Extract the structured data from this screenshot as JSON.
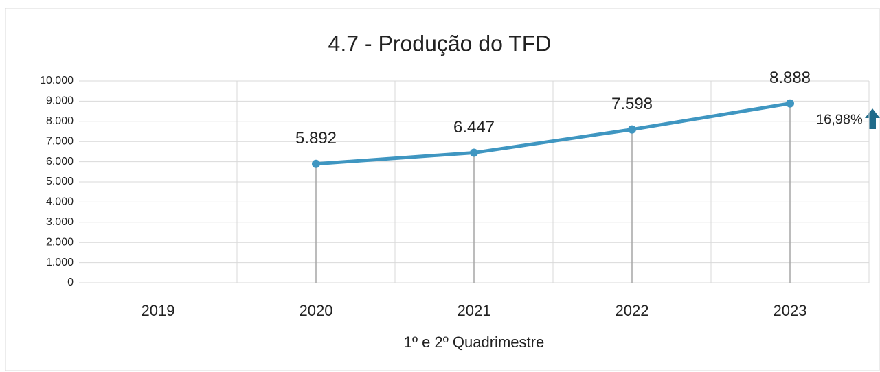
{
  "chart_data": {
    "type": "line",
    "title": "4.7 - Produção do TFD",
    "x_label": "1º e 2º Quadrimestre",
    "categories": [
      "2019",
      "2020",
      "2021",
      "2022",
      "2023"
    ],
    "values": [
      null,
      5892,
      6447,
      7598,
      8888
    ],
    "value_labels": [
      null,
      "5.892",
      "6.447",
      "7.598",
      "8.888"
    ],
    "color": "#3f96c1",
    "ylim": [
      0,
      10000
    ],
    "yticks": [
      0,
      {
        "value": 1000,
        "label": "1.000"
      },
      {
        "value": 2000,
        "label": "2.000"
      },
      {
        "value": 3000,
        "label": "3.000"
      },
      {
        "value": 4000,
        "label": "4.000"
      },
      {
        "value": 5000,
        "label": "5.000"
      },
      {
        "value": 6000,
        "label": "6.000"
      },
      {
        "value": 7000,
        "label": "7.000"
      },
      {
        "value": 8000,
        "label": "8.000"
      },
      {
        "value": 9000,
        "label": "9.000"
      },
      {
        "value": 10000,
        "label": "10.000"
      }
    ],
    "grid": true,
    "annotation": "16,98%"
  }
}
